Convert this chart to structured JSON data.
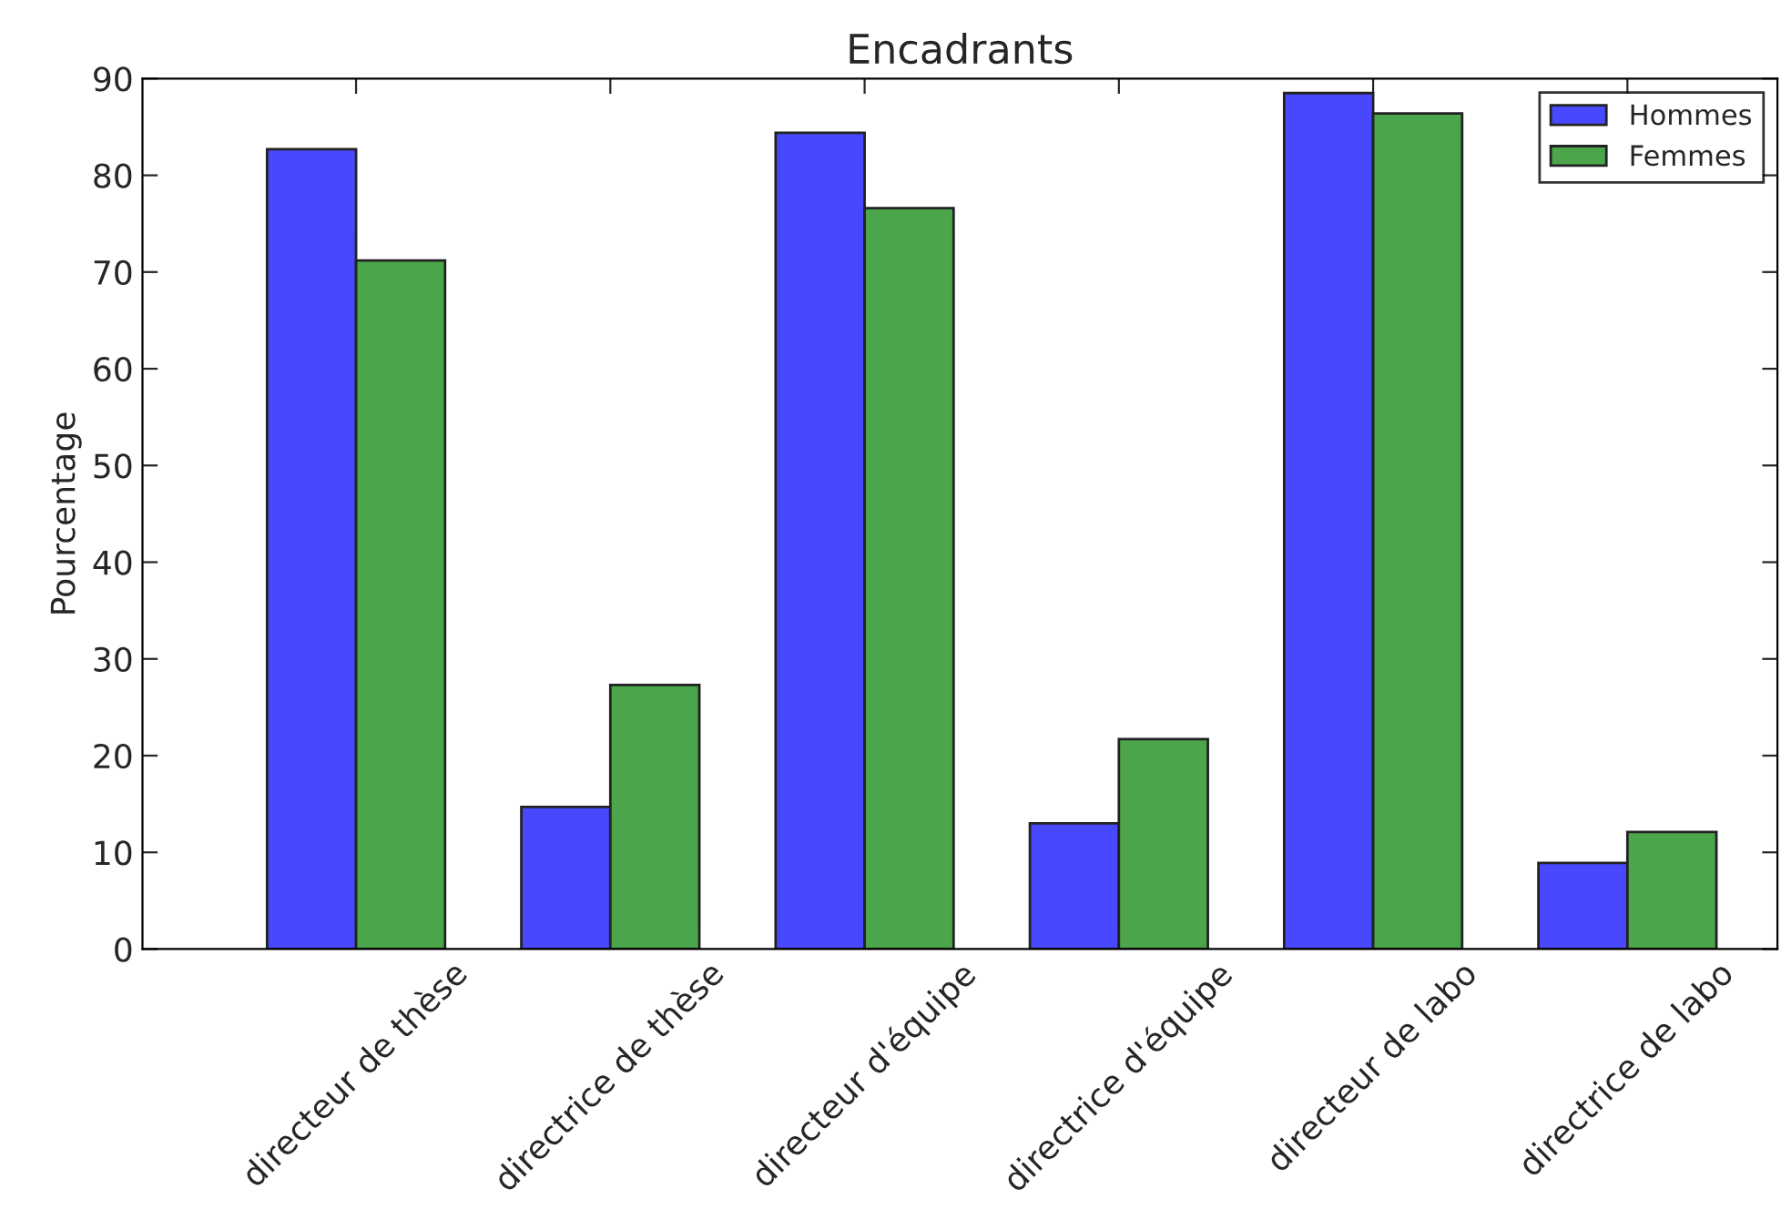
{
  "chart_data": {
    "type": "bar",
    "title": "Encadrants",
    "ylabel": "Pourcentage",
    "categories": [
      "directeur de thèse",
      "directrice de thèse",
      "directeur d'équipe",
      "directrice d'équipe",
      "directeur de labo",
      "directrice de labo"
    ],
    "series": [
      {
        "name": "Hommes",
        "color": "#4848fe",
        "values": [
          82.7,
          14.7,
          84.4,
          13.0,
          88.5,
          8.9
        ]
      },
      {
        "name": "Femmes",
        "color": "#4ba64b",
        "values": [
          71.2,
          27.3,
          76.6,
          21.7,
          86.4,
          12.1
        ]
      }
    ],
    "ylim": [
      0,
      90
    ],
    "yticks": [
      0,
      10,
      20,
      30,
      40,
      50,
      60,
      70,
      80,
      90
    ],
    "legend": "top right"
  }
}
